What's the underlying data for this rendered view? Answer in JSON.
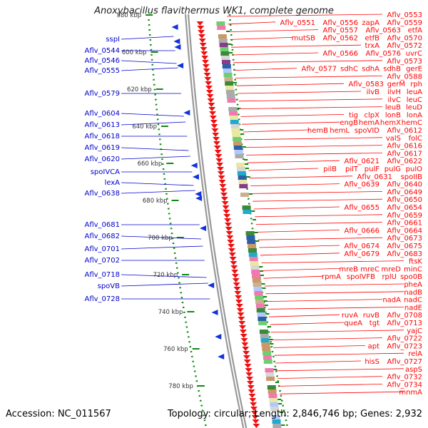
{
  "title": "Anoxybacillus flavithermus WK1, complete genome",
  "footer": {
    "accession": "Accession: NC_011567",
    "topology": "Topology: circular; Length: 2,846,746 bp; Genes: 2,932"
  },
  "colors": {
    "right_labels": "#ff0000",
    "left_labels": "#0000cc",
    "arrow_red": "#ee1111",
    "arrow_blue": "#1133dd",
    "tick_green": "#118811",
    "backbone": "#999999"
  },
  "kbp_ticks": [
    {
      "label": "580 kbp",
      "pos": 580
    },
    {
      "label": "600 kbp",
      "pos": 600
    },
    {
      "label": "620 kbp",
      "pos": 620
    },
    {
      "label": "640 kbp",
      "pos": 640
    },
    {
      "label": "660 kbp",
      "pos": 660
    },
    {
      "label": "680 kbp",
      "pos": 680
    },
    {
      "label": "700 kbp",
      "pos": 700
    },
    {
      "label": "720 kbp",
      "pos": 720
    },
    {
      "label": "740 kbp",
      "pos": 740
    },
    {
      "label": "760 kbp",
      "pos": 760
    },
    {
      "label": "780 kbp",
      "pos": 780
    }
  ],
  "left_labels": [
    "sspI",
    "Aflv_0544",
    "Aflv_0546",
    "Aflv_0555",
    "Aflv_0579",
    "Aflv_0604",
    "Aflv_0613",
    "Aflv_0618",
    "Aflv_0619",
    "Aflv_0620",
    "spoIVCA",
    "lexA",
    "Aflv_0638",
    "Aflv_0681",
    "Aflv_0682",
    "Aflv_0701",
    "Aflv_0702",
    "Aflv_0718",
    "spoVB",
    "Aflv_0728"
  ],
  "right_label_rows": [
    [
      "Aflv_0553"
    ],
    [
      "Aflv_0551",
      "Aflv_0556",
      "zapA",
      "Aflv_0559"
    ],
    [
      "Aflv_0557",
      "Aflv_0563",
      "etfA"
    ],
    [
      "mutSB",
      "Aflv_0562",
      "etfB",
      "Aflv_0570"
    ],
    [
      "trxA",
      "Aflv_0572"
    ],
    [
      "Aflv_0566",
      "Aflv_0576",
      "uvrC"
    ],
    [
      "Aflv_0573"
    ],
    [
      "Aflv_0577",
      "sdhC",
      "sdhA",
      "sdhB",
      "gerE"
    ],
    [
      "Aflv_0588"
    ],
    [
      "Aflv_0583",
      "gerM",
      "rph"
    ],
    [
      "ilvB",
      "ilvH",
      "leuA"
    ],
    [
      "ilvC",
      "leuC"
    ],
    [
      "leuB",
      "leuD"
    ],
    [
      "tig",
      "clpX",
      "lonB",
      "lonA"
    ],
    [
      "engB",
      "hemA",
      "hemX",
      "hemC"
    ],
    [
      "hemB",
      "hemL",
      "spoVID",
      "Aflv_0612"
    ],
    [
      "valS",
      "folC"
    ],
    [
      "Aflv_0616"
    ],
    [
      "Aflv_0617"
    ],
    [
      "Aflv_0621",
      "Aflv_0622"
    ],
    [
      "pilB",
      "pilT",
      "pulF",
      "pulG",
      "pulO"
    ],
    [
      "Aflv_0631",
      "spoIIB"
    ],
    [
      "Aflv_0639",
      "Aflv_0640"
    ],
    [
      "Aflv_0649"
    ],
    [
      "Aflv_0650"
    ],
    [
      "Aflv_0655",
      "Aflv_0654"
    ],
    [
      "Aflv_0659"
    ],
    [
      "Aflv_0661"
    ],
    [
      "Aflv_0666",
      "Aflv_0664"
    ],
    [
      "Aflv_0673"
    ],
    [
      "Aflv_0674",
      "Aflv_0675"
    ],
    [
      "Aflv_0679",
      "Aflv_0683"
    ],
    [
      "ftsK"
    ],
    [
      "mreB",
      "mreC",
      "mreD",
      "minC"
    ],
    [
      "rpmA",
      "spoIVFB",
      "rplU",
      "spo0B"
    ],
    [
      "pheA"
    ],
    [
      "nadB"
    ],
    [
      "nadA",
      "nadC"
    ],
    [
      "nadE"
    ],
    [
      "ruvA",
      "ruvB",
      "Aflv_0708"
    ],
    [
      "queA",
      "tgt",
      "Aflv_0713"
    ],
    [
      "yajC"
    ],
    [
      "Aflv_0722"
    ],
    [
      "apt",
      "Aflv_0723"
    ],
    [
      "relA"
    ],
    [
      "hisS",
      "Aflv_0727"
    ],
    [
      "aspS"
    ],
    [
      "Aflv_0732"
    ],
    [
      "Aflv_0734"
    ],
    [
      "mnmA"
    ]
  ]
}
